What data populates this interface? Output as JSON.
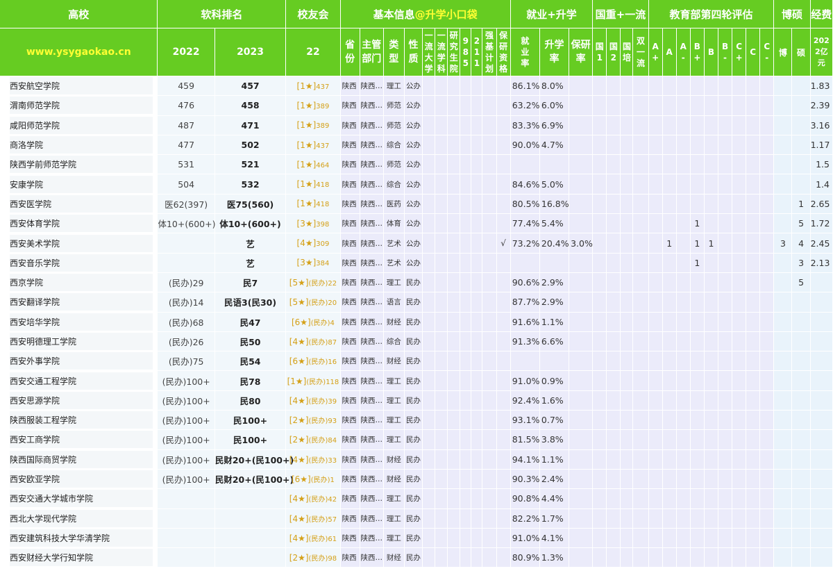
{
  "header": {
    "school": "高校",
    "soft_rank": "软科排名",
    "alumni": "校友会",
    "basic_info": "基本信息",
    "basic_info_tag": "@升学小口袋",
    "employment": "就业+升学",
    "national": "国重+一流",
    "eval": "教育部第四轮评估",
    "phd_master": "博硕",
    "fee": "经费"
  },
  "subheader": {
    "site": "www.ysygaokao.cn",
    "y2022": "2022",
    "y2023": "2023",
    "alumni_year": "22",
    "province": "省份",
    "dept": "主管部门",
    "type": "类型",
    "nature": "性质",
    "yiliu_daxue": "一流大学",
    "yiliu_xueke": "一流学科",
    "yanjiushengyuan": "研究生院",
    "c985": "985",
    "c211": "211",
    "qiangji": "强基计划",
    "baoyan_zige": "保研资格",
    "jiuye": "就业率",
    "shengxue": "升学率",
    "baoyan": "保研率",
    "guo1": "国1",
    "guo2": "国2",
    "guopei": "国培",
    "shuangyiliu": "双一流",
    "e_aplus": "A+",
    "e_a": "A",
    "e_aminus": "A-",
    "e_bplus": "B+",
    "e_b": "B",
    "e_bminus": "B-",
    "e_cplus": "C+",
    "e_c": "C",
    "e_cminus": "C-",
    "bo": "博",
    "shuo": "硕",
    "fee": "2022亿元"
  },
  "rows": [
    {
      "name": "西安航空学院",
      "r22": "459",
      "r23": "457",
      "alum_stars": "[1★]",
      "alum_note": "",
      "alum_rank": "437",
      "prov": "陕西",
      "dept": "陕西…",
      "type": "理工",
      "nature": "公办",
      "baoyan_zige": "",
      "jy": "86.1%",
      "sx": "8.0%",
      "by": "",
      "e_aplus": "",
      "e_a": "",
      "e_aminus": "",
      "e_bplus": "",
      "e_b": "",
      "bo": "",
      "shuo": "",
      "fee": "1.83"
    },
    {
      "name": "渭南师范学院",
      "r22": "476",
      "r23": "458",
      "alum_stars": "[1★]",
      "alum_note": "",
      "alum_rank": "389",
      "prov": "陕西",
      "dept": "陕西…",
      "type": "师范",
      "nature": "公办",
      "baoyan_zige": "",
      "jy": "63.2%",
      "sx": "6.0%",
      "by": "",
      "e_aplus": "",
      "e_a": "",
      "e_aminus": "",
      "e_bplus": "",
      "e_b": "",
      "bo": "",
      "shuo": "",
      "fee": "2.39"
    },
    {
      "name": "咸阳师范学院",
      "r22": "487",
      "r23": "471",
      "alum_stars": "[1★]",
      "alum_note": "",
      "alum_rank": "389",
      "prov": "陕西",
      "dept": "陕西…",
      "type": "师范",
      "nature": "公办",
      "baoyan_zige": "",
      "jy": "83.3%",
      "sx": "6.9%",
      "by": "",
      "e_aplus": "",
      "e_a": "",
      "e_aminus": "",
      "e_bplus": "",
      "e_b": "",
      "bo": "",
      "shuo": "",
      "fee": "3.16"
    },
    {
      "name": "商洛学院",
      "r22": "477",
      "r23": "502",
      "alum_stars": "[1★]",
      "alum_note": "",
      "alum_rank": "437",
      "prov": "陕西",
      "dept": "陕西…",
      "type": "综合",
      "nature": "公办",
      "baoyan_zige": "",
      "jy": "90.0%",
      "sx": "4.7%",
      "by": "",
      "e_aplus": "",
      "e_a": "",
      "e_aminus": "",
      "e_bplus": "",
      "e_b": "",
      "bo": "",
      "shuo": "",
      "fee": "1.17"
    },
    {
      "name": "陕西学前师范学院",
      "r22": "531",
      "r23": "521",
      "alum_stars": "[1★]",
      "alum_note": "",
      "alum_rank": "464",
      "prov": "陕西",
      "dept": "陕西…",
      "type": "师范",
      "nature": "公办",
      "baoyan_zige": "",
      "jy": "",
      "sx": "",
      "by": "",
      "e_aplus": "",
      "e_a": "",
      "e_aminus": "",
      "e_bplus": "",
      "e_b": "",
      "bo": "",
      "shuo": "",
      "fee": "1.5"
    },
    {
      "name": "安康学院",
      "r22": "504",
      "r23": "532",
      "alum_stars": "[1★]",
      "alum_note": "",
      "alum_rank": "418",
      "prov": "陕西",
      "dept": "陕西…",
      "type": "综合",
      "nature": "公办",
      "baoyan_zige": "",
      "jy": "84.6%",
      "sx": "5.0%",
      "by": "",
      "e_aplus": "",
      "e_a": "",
      "e_aminus": "",
      "e_bplus": "",
      "e_b": "",
      "bo": "",
      "shuo": "",
      "fee": "1.4"
    },
    {
      "name": "西安医学院",
      "r22": "医62(397)",
      "r23": "医75(560)",
      "alum_stars": "[1★]",
      "alum_note": "",
      "alum_rank": "418",
      "prov": "陕西",
      "dept": "陕西…",
      "type": "医药",
      "nature": "公办",
      "baoyan_zige": "",
      "jy": "80.5%",
      "sx": "16.8%",
      "by": "",
      "e_aplus": "",
      "e_a": "",
      "e_aminus": "",
      "e_bplus": "",
      "e_b": "",
      "bo": "",
      "shuo": "1",
      "fee": "2.65"
    },
    {
      "name": "西安体育学院",
      "r22": "体10+(600+)",
      "r23": "体10+(600+)",
      "alum_stars": "[3★]",
      "alum_note": "",
      "alum_rank": "398",
      "prov": "陕西",
      "dept": "陕西…",
      "type": "体育",
      "nature": "公办",
      "baoyan_zige": "",
      "jy": "77.4%",
      "sx": "5.4%",
      "by": "",
      "e_aplus": "",
      "e_a": "",
      "e_aminus": "",
      "e_bplus": "1",
      "e_b": "",
      "bo": "",
      "shuo": "5",
      "fee": "1.72"
    },
    {
      "name": "西安美术学院",
      "r22": "",
      "r23": "艺",
      "alum_stars": "[4★]",
      "alum_note": "",
      "alum_rank": "309",
      "prov": "陕西",
      "dept": "陕西…",
      "type": "艺术",
      "nature": "公办",
      "baoyan_zige": "√",
      "jy": "73.2%",
      "sx": "20.4%",
      "by": "3.0%",
      "e_aplus": "",
      "e_a": "1",
      "e_aminus": "",
      "e_bplus": "1",
      "e_b": "1",
      "bo": "3",
      "shuo": "4",
      "fee": "2.45"
    },
    {
      "name": "西安音乐学院",
      "r22": "",
      "r23": "艺",
      "alum_stars": "[3★]",
      "alum_note": "",
      "alum_rank": "384",
      "prov": "陕西",
      "dept": "陕西…",
      "type": "艺术",
      "nature": "公办",
      "baoyan_zige": "",
      "jy": "",
      "sx": "",
      "by": "",
      "e_aplus": "",
      "e_a": "",
      "e_aminus": "",
      "e_bplus": "1",
      "e_b": "",
      "bo": "",
      "shuo": "3",
      "fee": "2.13"
    },
    {
      "name": "西京学院",
      "r22": "(民办)29",
      "r23": "民7",
      "alum_stars": "[5★]",
      "alum_note": "(民办)",
      "alum_rank": "22",
      "prov": "陕西",
      "dept": "陕西…",
      "type": "理工",
      "nature": "民办",
      "baoyan_zige": "",
      "jy": "90.6%",
      "sx": "2.9%",
      "by": "",
      "e_aplus": "",
      "e_a": "",
      "e_aminus": "",
      "e_bplus": "",
      "e_b": "",
      "bo": "",
      "shuo": "5",
      "fee": ""
    },
    {
      "name": "西安翻译学院",
      "r22": "(民办)14",
      "r23": "民语3(民30)",
      "alum_stars": "[5★]",
      "alum_note": "(民办)",
      "alum_rank": "20",
      "prov": "陕西",
      "dept": "陕西…",
      "type": "语言",
      "nature": "民办",
      "baoyan_zige": "",
      "jy": "87.7%",
      "sx": "2.9%",
      "by": "",
      "e_aplus": "",
      "e_a": "",
      "e_aminus": "",
      "e_bplus": "",
      "e_b": "",
      "bo": "",
      "shuo": "",
      "fee": ""
    },
    {
      "name": "西安培华学院",
      "r22": "(民办)68",
      "r23": "民47",
      "alum_stars": "[6★]",
      "alum_note": "(民办)",
      "alum_rank": "4",
      "prov": "陕西",
      "dept": "陕西…",
      "type": "财经",
      "nature": "民办",
      "baoyan_zige": "",
      "jy": "91.6%",
      "sx": "1.1%",
      "by": "",
      "e_aplus": "",
      "e_a": "",
      "e_aminus": "",
      "e_bplus": "",
      "e_b": "",
      "bo": "",
      "shuo": "",
      "fee": ""
    },
    {
      "name": "西安明德理工学院",
      "r22": "(民办)26",
      "r23": "民50",
      "alum_stars": "[4★]",
      "alum_note": "(民办)",
      "alum_rank": "87",
      "prov": "陕西",
      "dept": "陕西…",
      "type": "综合",
      "nature": "民办",
      "baoyan_zige": "",
      "jy": "91.3%",
      "sx": "6.6%",
      "by": "",
      "e_aplus": "",
      "e_a": "",
      "e_aminus": "",
      "e_bplus": "",
      "e_b": "",
      "bo": "",
      "shuo": "",
      "fee": ""
    },
    {
      "name": "西安外事学院",
      "r22": "(民办)75",
      "r23": "民54",
      "alum_stars": "[6★]",
      "alum_note": "(民办)",
      "alum_rank": "16",
      "prov": "陕西",
      "dept": "陕西…",
      "type": "财经",
      "nature": "民办",
      "baoyan_zige": "",
      "jy": "",
      "sx": "",
      "by": "",
      "e_aplus": "",
      "e_a": "",
      "e_aminus": "",
      "e_bplus": "",
      "e_b": "",
      "bo": "",
      "shuo": "",
      "fee": ""
    },
    {
      "name": "西安交通工程学院",
      "r22": "(民办)100+",
      "r23": "民78",
      "alum_stars": "[1★]",
      "alum_note": "(民办)",
      "alum_rank": "118",
      "prov": "陕西",
      "dept": "陕西…",
      "type": "理工",
      "nature": "民办",
      "baoyan_zige": "",
      "jy": "91.0%",
      "sx": "0.9%",
      "by": "",
      "e_aplus": "",
      "e_a": "",
      "e_aminus": "",
      "e_bplus": "",
      "e_b": "",
      "bo": "",
      "shuo": "",
      "fee": ""
    },
    {
      "name": "西安思源学院",
      "r22": "(民办)100+",
      "r23": "民80",
      "alum_stars": "[4★]",
      "alum_note": "(民办)",
      "alum_rank": "39",
      "prov": "陕西",
      "dept": "陕西…",
      "type": "理工",
      "nature": "民办",
      "baoyan_zige": "",
      "jy": "92.4%",
      "sx": "1.6%",
      "by": "",
      "e_aplus": "",
      "e_a": "",
      "e_aminus": "",
      "e_bplus": "",
      "e_b": "",
      "bo": "",
      "shuo": "",
      "fee": ""
    },
    {
      "name": "陕西服装工程学院",
      "r22": "(民办)100+",
      "r23": "民100+",
      "alum_stars": "[2★]",
      "alum_note": "(民办)",
      "alum_rank": "93",
      "prov": "陕西",
      "dept": "陕西…",
      "type": "理工",
      "nature": "民办",
      "baoyan_zige": "",
      "jy": "93.1%",
      "sx": "0.7%",
      "by": "",
      "e_aplus": "",
      "e_a": "",
      "e_aminus": "",
      "e_bplus": "",
      "e_b": "",
      "bo": "",
      "shuo": "",
      "fee": ""
    },
    {
      "name": "西安工商学院",
      "r22": "(民办)100+",
      "r23": "民100+",
      "alum_stars": "[2★]",
      "alum_note": "(民办)",
      "alum_rank": "84",
      "prov": "陕西",
      "dept": "陕西…",
      "type": "理工",
      "nature": "民办",
      "baoyan_zige": "",
      "jy": "81.5%",
      "sx": "3.8%",
      "by": "",
      "e_aplus": "",
      "e_a": "",
      "e_aminus": "",
      "e_bplus": "",
      "e_b": "",
      "bo": "",
      "shuo": "",
      "fee": ""
    },
    {
      "name": "陕西国际商贸学院",
      "r22": "(民办)100+",
      "r23": "民财20+(民100+)",
      "alum_stars": "[4★]",
      "alum_note": "(民办)",
      "alum_rank": "33",
      "prov": "陕西",
      "dept": "陕西…",
      "type": "财经",
      "nature": "民办",
      "baoyan_zige": "",
      "jy": "94.1%",
      "sx": "1.1%",
      "by": "",
      "e_aplus": "",
      "e_a": "",
      "e_aminus": "",
      "e_bplus": "",
      "e_b": "",
      "bo": "",
      "shuo": "",
      "fee": ""
    },
    {
      "name": "西安欧亚学院",
      "r22": "(民办)100+",
      "r23": "民财20+(民100+)",
      "alum_stars": "[6★]",
      "alum_note": "(民办)",
      "alum_rank": "1",
      "prov": "陕西",
      "dept": "陕西…",
      "type": "财经",
      "nature": "民办",
      "baoyan_zige": "",
      "jy": "90.3%",
      "sx": "2.4%",
      "by": "",
      "e_aplus": "",
      "e_a": "",
      "e_aminus": "",
      "e_bplus": "",
      "e_b": "",
      "bo": "",
      "shuo": "",
      "fee": ""
    },
    {
      "name": "西安交通大学城市学院",
      "r22": "",
      "r23": "",
      "alum_stars": "[4★]",
      "alum_note": "(民办)",
      "alum_rank": "42",
      "prov": "陕西",
      "dept": "陕西…",
      "type": "理工",
      "nature": "民办",
      "baoyan_zige": "",
      "jy": "90.8%",
      "sx": "4.4%",
      "by": "",
      "e_aplus": "",
      "e_a": "",
      "e_aminus": "",
      "e_bplus": "",
      "e_b": "",
      "bo": "",
      "shuo": "",
      "fee": ""
    },
    {
      "name": "西北大学现代学院",
      "r22": "",
      "r23": "",
      "alum_stars": "[4★]",
      "alum_note": "(民办)",
      "alum_rank": "57",
      "prov": "陕西",
      "dept": "陕西…",
      "type": "理工",
      "nature": "民办",
      "baoyan_zige": "",
      "jy": "82.2%",
      "sx": "1.7%",
      "by": "",
      "e_aplus": "",
      "e_a": "",
      "e_aminus": "",
      "e_bplus": "",
      "e_b": "",
      "bo": "",
      "shuo": "",
      "fee": ""
    },
    {
      "name": "西安建筑科技大学华清学院",
      "r22": "",
      "r23": "",
      "alum_stars": "[4★]",
      "alum_note": "(民办)",
      "alum_rank": "61",
      "prov": "陕西",
      "dept": "陕西…",
      "type": "理工",
      "nature": "民办",
      "baoyan_zige": "",
      "jy": "91.0%",
      "sx": "4.1%",
      "by": "",
      "e_aplus": "",
      "e_a": "",
      "e_aminus": "",
      "e_bplus": "",
      "e_b": "",
      "bo": "",
      "shuo": "",
      "fee": ""
    },
    {
      "name": "西安财经大学行知学院",
      "r22": "",
      "r23": "",
      "alum_stars": "[2★]",
      "alum_note": "(民办)",
      "alum_rank": "98",
      "prov": "陕西",
      "dept": "陕西…",
      "type": "财经",
      "nature": "民办",
      "baoyan_zige": "",
      "jy": "80.9%",
      "sx": "1.3%",
      "by": "",
      "e_aplus": "",
      "e_a": "",
      "e_aminus": "",
      "e_bplus": "",
      "e_b": "",
      "bo": "",
      "shuo": "",
      "fee": ""
    }
  ]
}
